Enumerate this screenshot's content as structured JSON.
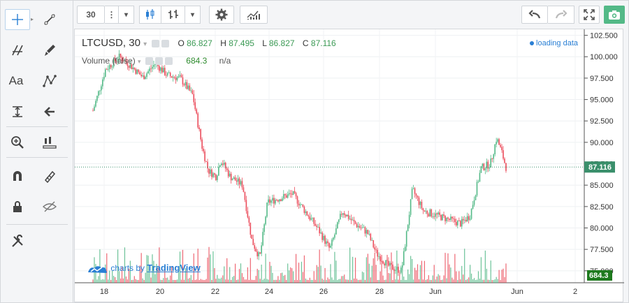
{
  "toolbar": {
    "interval": "30",
    "more": "⋮",
    "dropdown": "▾"
  },
  "legend": {
    "symbol": "LTCUSD, 30",
    "open_label": "O",
    "open": "86.827",
    "high_label": "H",
    "high": "87.495",
    "low_label": "L",
    "low": "86.827",
    "close_label": "C",
    "close": "87.116",
    "volume_label": "Volume (false)",
    "volume_value": "684.3",
    "volume_na": "n/a"
  },
  "status": {
    "loading": "loading data"
  },
  "watermark": {
    "prefix": "charts by",
    "brand": "TradingView"
  },
  "left_tools": [
    {
      "name": "crosshair-icon"
    },
    {
      "name": "trend-line-icon"
    },
    {
      "name": "fib-icon"
    },
    {
      "name": "brush-icon"
    },
    {
      "name": "text-icon",
      "label": "Aa"
    },
    {
      "name": "pattern-icon"
    },
    {
      "name": "measure-icon"
    },
    {
      "name": "arrow-left-icon"
    },
    {
      "name": "zoom-in-icon"
    },
    {
      "name": "ruler-icon"
    },
    {
      "name": "magnet-icon"
    },
    {
      "name": "lock-drawings-icon"
    },
    {
      "name": "lock-icon"
    },
    {
      "name": "eye-hide-icon"
    },
    {
      "name": "remove-tools-icon"
    }
  ],
  "colors": {
    "up": "#53b987",
    "down": "#eb4d5c",
    "price_line": "#3a8f6b",
    "accent": "#2a7fd4",
    "badge": "#1e7a1e"
  },
  "chart_data": {
    "type": "candlestick",
    "symbol": "LTCUSD",
    "interval": "30",
    "y_ticks": [
      "102.500",
      "100.000",
      "97.500",
      "95.000",
      "92.500",
      "90.000",
      "87.500",
      "85.000",
      "82.500",
      "80.000",
      "77.500",
      "75.000"
    ],
    "x_ticks": [
      "18",
      "20",
      "22",
      "24",
      "26",
      "28",
      "Jun",
      "Jun",
      "2"
    ],
    "last_price": "87.116",
    "last_volume": "684.3",
    "ylim": [
      73.6,
      103.2
    ],
    "approx_close_path": [
      {
        "x": 0.0,
        "y": 93.7
      },
      {
        "x": 0.4,
        "y": 98.5
      },
      {
        "x": 0.85,
        "y": 100.0
      },
      {
        "x": 1.2,
        "y": 99.0
      },
      {
        "x": 1.6,
        "y": 97.6
      },
      {
        "x": 2.0,
        "y": 99.2
      },
      {
        "x": 2.4,
        "y": 97.8
      },
      {
        "x": 2.8,
        "y": 97.5
      },
      {
        "x": 3.2,
        "y": 95.5
      },
      {
        "x": 3.5,
        "y": 89.5
      },
      {
        "x": 3.7,
        "y": 86.7
      },
      {
        "x": 3.95,
        "y": 86.0
      },
      {
        "x": 4.1,
        "y": 88.0
      },
      {
        "x": 4.4,
        "y": 86.0
      },
      {
        "x": 4.8,
        "y": 85.0
      },
      {
        "x": 5.1,
        "y": 78.5
      },
      {
        "x": 5.35,
        "y": 76.5
      },
      {
        "x": 5.6,
        "y": 83.0
      },
      {
        "x": 6.0,
        "y": 83.5
      },
      {
        "x": 6.4,
        "y": 84.0
      },
      {
        "x": 6.8,
        "y": 82.0
      },
      {
        "x": 7.2,
        "y": 80.0
      },
      {
        "x": 7.6,
        "y": 77.5
      },
      {
        "x": 8.0,
        "y": 82.0
      },
      {
        "x": 8.4,
        "y": 80.5
      },
      {
        "x": 8.8,
        "y": 79.5
      },
      {
        "x": 9.1,
        "y": 77.0
      },
      {
        "x": 9.5,
        "y": 75.5
      },
      {
        "x": 9.9,
        "y": 75.0
      },
      {
        "x": 10.25,
        "y": 84.5
      },
      {
        "x": 10.6,
        "y": 82.0
      },
      {
        "x": 11.0,
        "y": 81.5
      },
      {
        "x": 11.4,
        "y": 81.0
      },
      {
        "x": 11.8,
        "y": 80.5
      },
      {
        "x": 12.1,
        "y": 81.5
      },
      {
        "x": 12.45,
        "y": 87.0
      },
      {
        "x": 12.75,
        "y": 87.5
      },
      {
        "x": 12.95,
        "y": 90.5
      },
      {
        "x": 13.1,
        "y": 89.0
      },
      {
        "x": 13.25,
        "y": 87.1
      }
    ]
  }
}
